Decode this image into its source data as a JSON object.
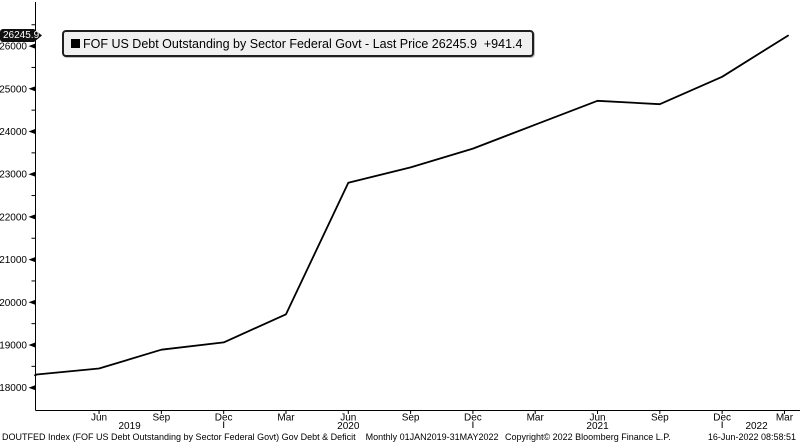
{
  "window": {
    "background": "#ffffff",
    "accent_color": "#000000"
  },
  "legend": {
    "marker_icon": "black-square-series-marker",
    "label": "FOF US Debt Outstanding by Sector Federal Govt - Last Price 26245.9  +941.4"
  },
  "last_price_tag": {
    "label": "26245.9",
    "bg": "#101010",
    "fg": "#ffffff"
  },
  "footer": {
    "description": "DOUTFED Index (FOF US Debt Outstanding by Sector Federal Govt) Gov Debt & Deficit",
    "periodicity": "Monthly 01JAN2019-31MAY2022",
    "copyright": "Copyright© 2022 Bloomberg Finance L.P.",
    "timestamp": "16-Jun-2022 08:58:51"
  },
  "chart_data": {
    "type": "line",
    "title": "FOF US Debt Outstanding by Sector Federal Govt",
    "ticker": "DOUTFED Index",
    "last_price": 26245.9,
    "net_change": "+941.4",
    "line_color": "#000000",
    "grid": false,
    "legend_position": "top-left",
    "x": [
      "Jan 2019",
      "Mar 2019",
      "Jun 2019",
      "Sep 2019",
      "Dec 2019",
      "Mar 2020",
      "Jun 2020",
      "Sep 2020",
      "Dec 2020",
      "Mar 2021",
      "Jun 2021",
      "Sep 2021",
      "Dec 2021",
      "May 2022"
    ],
    "month_index": [
      0,
      2,
      5,
      8,
      11,
      14,
      17,
      20,
      23,
      26,
      29,
      32,
      35,
      40
    ],
    "values": [
      18290,
      18310,
      18450,
      18890,
      19060,
      19720,
      22800,
      23160,
      23600,
      24160,
      24720,
      24640,
      25280,
      26245.9
    ],
    "x_axis": {
      "range_label": "01JAN2019-31MAY2022",
      "ticks": [
        {
          "label": "Jun",
          "m": 5
        },
        {
          "label": "Sep",
          "m": 8
        },
        {
          "label": "Dec",
          "m": 11,
          "year_end": true
        },
        {
          "label": "Mar",
          "m": 14
        },
        {
          "label": "Jun",
          "m": 17
        },
        {
          "label": "Sep",
          "m": 20
        },
        {
          "label": "Dec",
          "m": 23,
          "year_end": true
        },
        {
          "label": "Mar",
          "m": 26
        },
        {
          "label": "Jun",
          "m": 29
        },
        {
          "label": "Sep",
          "m": 32
        },
        {
          "label": "Dec",
          "m": 35,
          "year_end": true
        },
        {
          "label": "Mar",
          "m": 38
        }
      ],
      "year_labels": [
        "2019",
        "2020",
        "2021",
        "2022"
      ]
    },
    "y_axis": {
      "min": 18000,
      "max": 26000,
      "major_step": 1000,
      "minor_step": 500,
      "labels": [
        "18000",
        "19000",
        "20000",
        "21000",
        "22000",
        "23000",
        "24000",
        "25000",
        "26000"
      ]
    }
  }
}
